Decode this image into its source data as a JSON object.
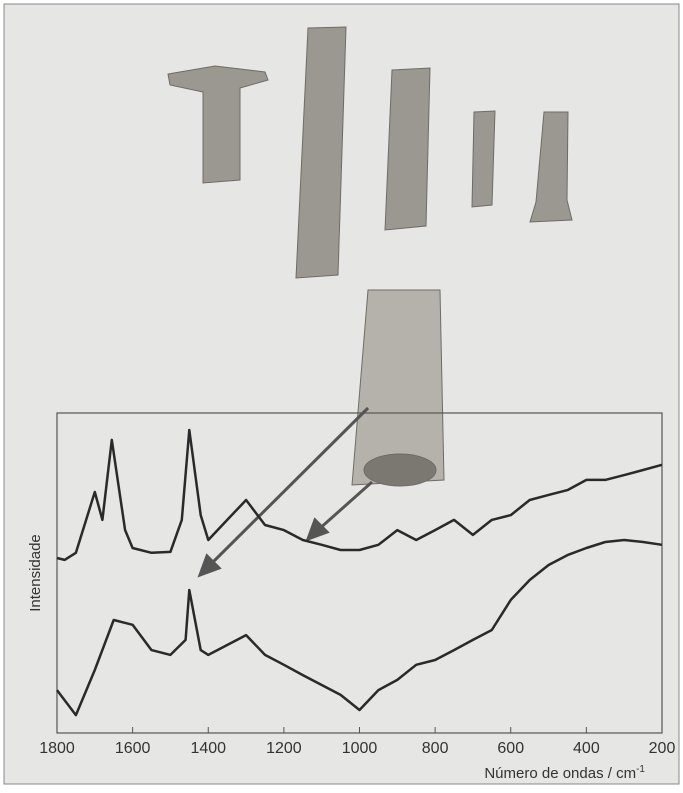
{
  "chart_data": {
    "type": "line",
    "x_label": "Número de ondas / cm",
    "x_label_superscript": "-1",
    "y_label": "Intensidade",
    "xlim": [
      1800,
      200
    ],
    "xticks": [
      1800,
      1600,
      1400,
      1200,
      1000,
      800,
      600,
      400,
      200
    ],
    "ylim": [
      0,
      100
    ],
    "series": [
      {
        "color": "#2a2a2a",
        "x": [
          1800,
          1780,
          1750,
          1700,
          1680,
          1655,
          1620,
          1600,
          1550,
          1500,
          1470,
          1450,
          1420,
          1400,
          1350,
          1300,
          1250,
          1200,
          1150,
          1100,
          1050,
          1000,
          950,
          900,
          850,
          800,
          750,
          700,
          650,
          600,
          550,
          500,
          450,
          400,
          350,
          300,
          250,
          200
        ],
        "values": [
          54.7,
          54.1,
          56.3,
          75.3,
          66.6,
          91.6,
          63.4,
          57.8,
          56.3,
          56.6,
          66.6,
          94.7,
          68.1,
          60.3,
          66.6,
          72.8,
          65,
          63.4,
          60.3,
          58.8,
          57.2,
          57.2,
          58.8,
          63.4,
          60.3,
          63.4,
          66.6,
          61.9,
          66.6,
          68.1,
          72.8,
          74.4,
          75.9,
          79.1,
          79.1,
          80.6,
          82.2,
          83.8
        ]
      },
      {
        "color": "#2a2a2a",
        "x": [
          1800,
          1750,
          1700,
          1650,
          1600,
          1550,
          1500,
          1460,
          1450,
          1420,
          1400,
          1350,
          1300,
          1250,
          1200,
          1150,
          1100,
          1050,
          1000,
          950,
          900,
          850,
          800,
          750,
          700,
          650,
          600,
          550,
          500,
          450,
          400,
          350,
          300,
          250,
          200
        ],
        "values": [
          13.4,
          5.6,
          19.7,
          35.3,
          33.8,
          25.9,
          24.4,
          29.1,
          44.7,
          25.9,
          24.4,
          27.5,
          30.6,
          24.4,
          21.3,
          18.1,
          15,
          11.9,
          7.2,
          13.4,
          16.6,
          21.3,
          22.8,
          25.9,
          29.1,
          32.2,
          41.6,
          47.8,
          52.5,
          55.6,
          57.8,
          59.7,
          60.3,
          59.7,
          58.8
        ]
      }
    ]
  }
}
